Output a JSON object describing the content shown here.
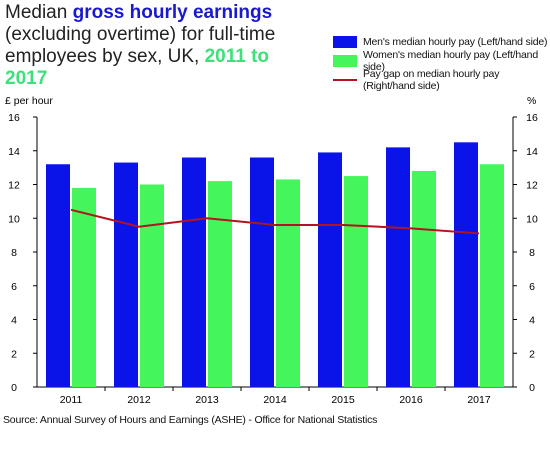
{
  "title": {
    "part1": "Median ",
    "highlight": "gross hourly earnings",
    "part2": " (excluding overtime) for full-time employees by sex, UK, ",
    "years": "2011 to 2017"
  },
  "colors": {
    "men": "#0a14e8",
    "women": "#44f55c",
    "gap": "#b3121f",
    "title_blue": "#1a1acc",
    "title_green": "#3ee07a"
  },
  "source": "Source: Annual Survey of Hours and Earnings (ASHE) - Office for National Statistics",
  "chart_data": {
    "type": "bar",
    "title": "Median gross hourly earnings (excluding overtime) for full-time employees by sex, UK, 2011 to 2017",
    "categories": [
      "2011",
      "2012",
      "2013",
      "2014",
      "2015",
      "2016",
      "2017"
    ],
    "series": [
      {
        "name": "Men's median hourly pay (Left/hand side)",
        "type": "bar",
        "axis": "left",
        "values": [
          13.2,
          13.3,
          13.6,
          13.6,
          13.9,
          14.2,
          14.5
        ]
      },
      {
        "name": "Women's median hourly pay (Left/hand side)",
        "type": "bar",
        "axis": "left",
        "values": [
          11.8,
          12.0,
          12.2,
          12.3,
          12.5,
          12.8,
          13.2
        ]
      },
      {
        "name": "Pay gap on median hourly pay (Right/hand side)",
        "type": "line",
        "axis": "right",
        "values": [
          10.5,
          9.5,
          10.0,
          9.6,
          9.6,
          9.4,
          9.1
        ]
      }
    ],
    "ylabel_left": "£ per hour",
    "ylabel_right": "%",
    "ylim": [
      0,
      16
    ],
    "y2lim": [
      0,
      16
    ],
    "yticks": [
      0,
      2,
      4,
      6,
      8,
      10,
      12,
      14,
      16
    ],
    "grid": false,
    "legend_position": "top-right"
  }
}
